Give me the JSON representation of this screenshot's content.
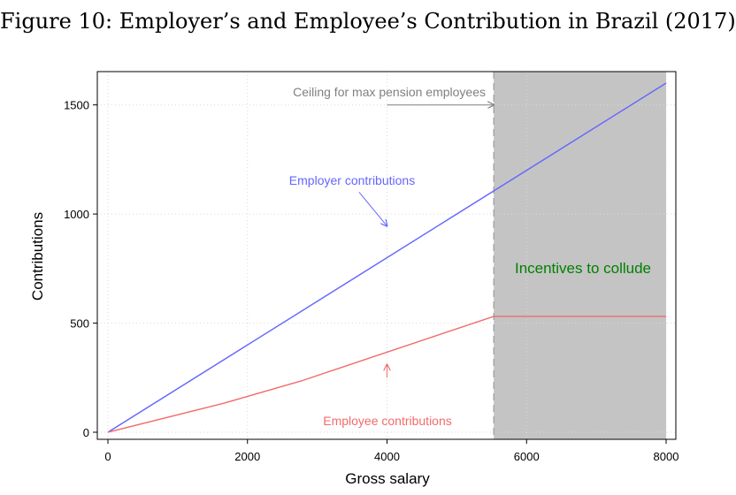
{
  "figure_title": "Figure 10: Employer’s and Employee’s Contribution in Brazil (2017)",
  "chart_data": {
    "type": "line",
    "xlabel": "Gross salary",
    "ylabel": "Contributions",
    "xlim": [
      0,
      8000
    ],
    "ylim": [
      0,
      1600
    ],
    "x_ticks": [
      0,
      2000,
      4000,
      6000,
      8000
    ],
    "y_ticks": [
      0,
      500,
      1000,
      1500
    ],
    "grid": true,
    "series": [
      {
        "name": "Employer contributions",
        "color": "#6666ff",
        "points": [
          [
            0,
            0
          ],
          [
            8000,
            1600
          ]
        ]
      },
      {
        "name": "Employee contributions",
        "color": "#f26b6b",
        "points": [
          [
            0,
            0
          ],
          [
            1660,
            133
          ],
          [
            2770,
            235
          ],
          [
            5530,
            531
          ],
          [
            8000,
            531
          ]
        ]
      }
    ],
    "ceiling_x": 5530,
    "shaded_region": [
      5530,
      8000
    ],
    "shade_color": "#c4c4c4",
    "annotations": {
      "ceiling": {
        "text": "Ceiling for max pension employees",
        "color": "#808080",
        "arrow_from": [
          4000,
          1500
        ],
        "arrow_to": [
          5530,
          1500
        ]
      },
      "employer": {
        "text": "Employer contributions",
        "color": "#6666ff",
        "arrow_from": [
          3600,
          1100
        ],
        "arrow_to": [
          4000,
          945
        ]
      },
      "employee": {
        "text": "Employee contributions",
        "color": "#f26b6b",
        "arrow_from": [
          4000,
          250
        ],
        "arrow_to": [
          4000,
          310
        ]
      },
      "collude": {
        "text": "Incentives to collude",
        "color": "#008000"
      }
    }
  }
}
